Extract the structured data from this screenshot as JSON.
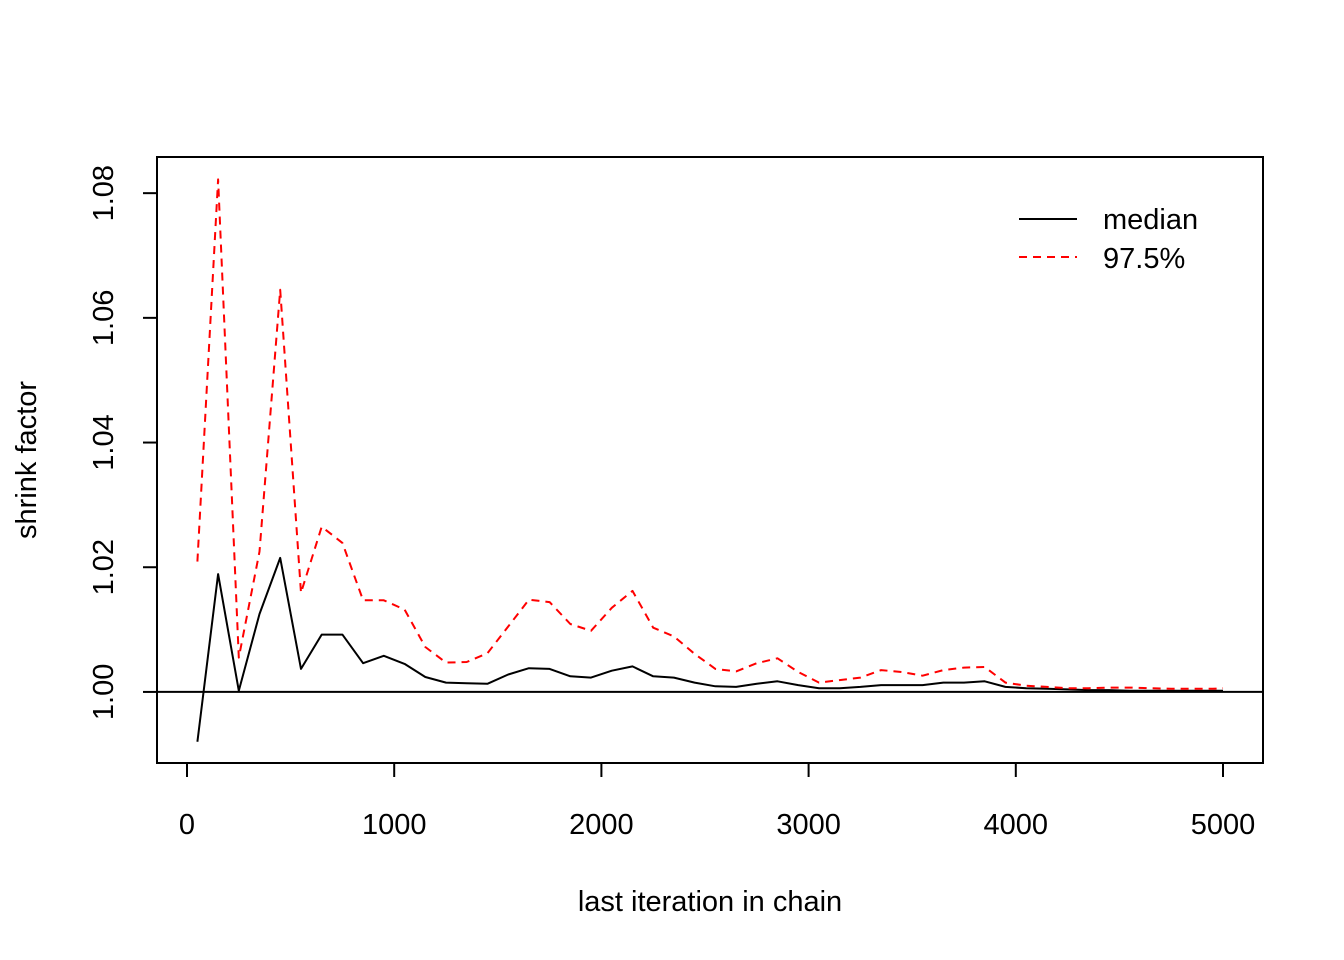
{
  "chart_data": {
    "type": "line",
    "title": "",
    "xlabel": "last iteration in chain",
    "ylabel": "shrink factor",
    "xlim": [
      0,
      5000
    ],
    "ylim": [
      0.9886,
      1.0858
    ],
    "x_ticks": [
      0,
      1000,
      2000,
      3000,
      4000,
      5000
    ],
    "x_tick_labels": [
      "0",
      "1000",
      "2000",
      "3000",
      "4000",
      "5000"
    ],
    "y_ticks": [
      1.0,
      1.02,
      1.04,
      1.06,
      1.08
    ],
    "y_tick_labels": [
      "1.00",
      "1.02",
      "1.04",
      "1.06",
      "1.08"
    ],
    "reference_line": 1.0,
    "grid": false,
    "legend_position": "top-right",
    "x": [
      50,
      150,
      250,
      350,
      450,
      550,
      650,
      750,
      850,
      950,
      1050,
      1150,
      1250,
      1350,
      1450,
      1550,
      1650,
      1750,
      1850,
      1950,
      2050,
      2150,
      2250,
      2350,
      2450,
      2550,
      2650,
      2750,
      2850,
      2950,
      3050,
      3150,
      3250,
      3350,
      3450,
      3550,
      3650,
      3750,
      3850,
      3950,
      4050,
      4150,
      4250,
      4350,
      4450,
      4550,
      4650,
      4750,
      4850,
      4950,
      5000
    ],
    "series": [
      {
        "name": "median",
        "color": "#000000",
        "dash": "solid",
        "values": [
          0.992,
          1.0189,
          1.0002,
          1.0125,
          1.0215,
          1.0037,
          1.0092,
          1.0092,
          1.0046,
          1.0058,
          1.0045,
          1.0024,
          1.0015,
          1.0014,
          1.0013,
          1.0028,
          1.0038,
          1.0037,
          1.0025,
          1.0023,
          1.0034,
          1.0041,
          1.0025,
          1.0023,
          1.0015,
          1.0009,
          1.0008,
          1.0013,
          1.0017,
          1.0011,
          1.0006,
          1.0006,
          1.0008,
          1.0011,
          1.0011,
          1.0011,
          1.0015,
          1.0015,
          1.0017,
          1.0008,
          1.0006,
          1.0005,
          1.0004,
          1.0003,
          1.0003,
          1.0002,
          1.0002,
          1.0002,
          1.0002,
          1.0002,
          1.0002
        ]
      },
      {
        "name": "97.5%",
        "color": "#ff0000",
        "dash": "dashed",
        "values": [
          1.0209,
          1.0822,
          1.0055,
          1.0225,
          1.0645,
          1.0159,
          1.0265,
          1.0239,
          1.0147,
          1.0147,
          1.0132,
          1.0072,
          1.0047,
          1.0048,
          1.0062,
          1.0105,
          1.0148,
          1.0144,
          1.0109,
          1.0098,
          1.0135,
          1.0162,
          1.0103,
          1.0089,
          1.0061,
          1.0037,
          1.0033,
          1.0046,
          1.0054,
          1.0032,
          1.0015,
          1.0019,
          1.0023,
          1.0035,
          1.0032,
          1.0026,
          1.0035,
          1.0039,
          1.004,
          1.0015,
          1.001,
          1.0008,
          1.0006,
          1.0006,
          1.0007,
          1.0007,
          1.0006,
          1.0005,
          1.0005,
          1.0005,
          1.0006
        ]
      }
    ]
  }
}
